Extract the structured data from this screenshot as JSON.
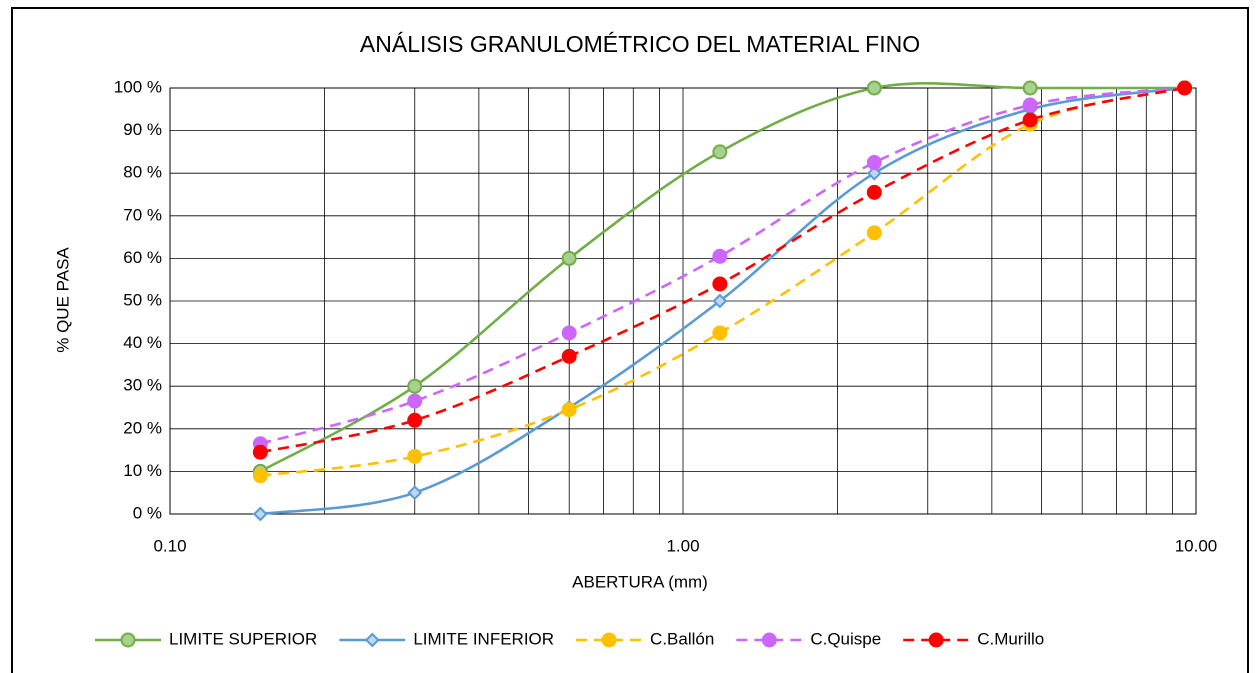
{
  "chart_data": {
    "type": "line",
    "title": "ANÁLISIS GRANULOMÉTRICO DEL MATERIAL FINO",
    "x_label": "ABERTURA (mm)",
    "y_label": "% QUE PASA",
    "x": [
      0.15,
      0.3,
      0.6,
      1.18,
      2.36,
      4.75,
      9.5
    ],
    "xscale": "log",
    "xlim": [
      0.1,
      10
    ],
    "xticks": [
      {
        "value": 0.1,
        "label": "0.10"
      },
      {
        "value": 1,
        "label": "1.00"
      },
      {
        "value": 10,
        "label": "10.00"
      }
    ],
    "xminorticks": [
      0.2,
      0.3,
      0.4,
      0.5,
      0.6,
      0.7,
      0.8,
      0.9,
      2,
      3,
      4,
      5,
      6,
      7,
      8,
      9
    ],
    "ylim": [
      0,
      100
    ],
    "yticks": [
      {
        "value": 0,
        "label": "0 %"
      },
      {
        "value": 10,
        "label": "10 %"
      },
      {
        "value": 20,
        "label": "20 %"
      },
      {
        "value": 30,
        "label": "30 %"
      },
      {
        "value": 40,
        "label": "40 %"
      },
      {
        "value": 50,
        "label": "50 %"
      },
      {
        "value": 60,
        "label": "60 %"
      },
      {
        "value": 70,
        "label": "70 %"
      },
      {
        "value": 80,
        "label": "80 %"
      },
      {
        "value": 90,
        "label": "90 %"
      },
      {
        "value": 100,
        "label": "100 %"
      }
    ],
    "grid": true,
    "legend": "bottom",
    "series": [
      {
        "name": "LIMITE SUPERIOR",
        "color": "#70ad47",
        "marker_fill": "#a9d18e",
        "marker": "circle",
        "dashed": false,
        "values": [
          10,
          30,
          60,
          85,
          100,
          100,
          100
        ]
      },
      {
        "name": "LIMITE INFERIOR",
        "color": "#5b9bd5",
        "marker_fill": "#bdd7ee",
        "marker": "diamond",
        "dashed": false,
        "values": [
          0,
          5,
          25,
          50,
          80,
          95,
          100
        ]
      },
      {
        "name": "C.Ballón",
        "color": "#ffc000",
        "marker_fill": "#ffc000",
        "marker": "circle",
        "dashed": true,
        "values": [
          9,
          13.5,
          24.5,
          42.5,
          66,
          91.5,
          100
        ]
      },
      {
        "name": "C.Quispe",
        "color": "#cc66ff",
        "marker_fill": "#cc66ff",
        "marker": "circle",
        "dashed": true,
        "values": [
          16.5,
          26.5,
          42.5,
          60.5,
          82.5,
          96,
          100
        ]
      },
      {
        "name": "C.Murillo",
        "color": "#ff0000",
        "marker_fill": "#ff0000",
        "marker": "circle",
        "dashed": true,
        "values": [
          14.5,
          22,
          37,
          54,
          75.5,
          92.5,
          100
        ]
      }
    ]
  }
}
